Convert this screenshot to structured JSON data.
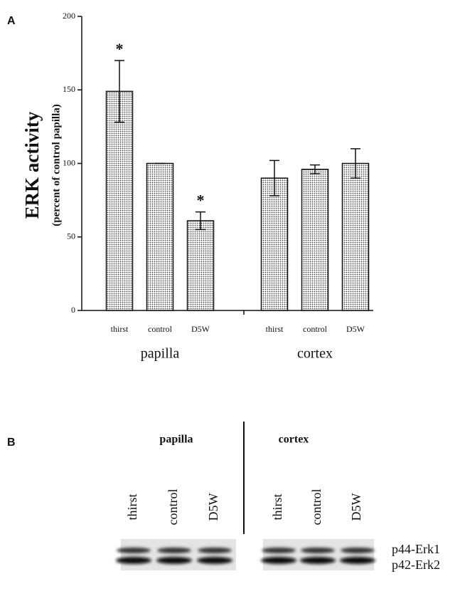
{
  "panel_a_label": "A",
  "chart_data": {
    "type": "bar",
    "ylabel": "ERK activity",
    "ylabel_sub": "(percent of control papilla)",
    "categories": [
      "thirst",
      "control",
      "D5W",
      "thirst",
      "control",
      "D5W"
    ],
    "groups": [
      "papilla",
      "cortex"
    ],
    "values": [
      149,
      100,
      61,
      90,
      96,
      100
    ],
    "errors": [
      21,
      0,
      6,
      12,
      3,
      10
    ],
    "significance": [
      "*",
      null,
      "*",
      null,
      null,
      null
    ],
    "ylim": [
      0,
      200
    ],
    "yticks": [
      0,
      50,
      100,
      150,
      200
    ],
    "grid": false
  },
  "panel_b": {
    "label": "B",
    "groups": [
      {
        "name": "papilla",
        "lanes": [
          "thirst",
          "control",
          "D5W"
        ]
      },
      {
        "name": "cortex",
        "lanes": [
          "thirst",
          "control",
          "D5W"
        ]
      }
    ],
    "bands": [
      "p44-Erk1",
      "p42-Erk2"
    ]
  }
}
